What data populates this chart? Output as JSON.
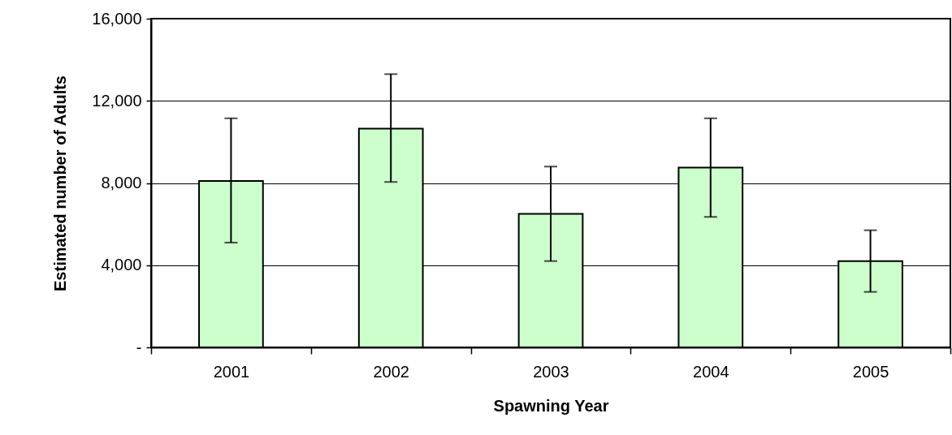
{
  "chart_data": {
    "type": "bar",
    "xlabel": "Spawning Year",
    "ylabel": "Estimated number of Adults",
    "categories": [
      "2001",
      "2002",
      "2003",
      "2004",
      "2005"
    ],
    "values": [
      8100,
      10650,
      6500,
      8750,
      4200
    ],
    "errors": [
      [
        5100,
        11150
      ],
      [
        8050,
        13300
      ],
      [
        4200,
        8800
      ],
      [
        6350,
        11150
      ],
      [
        2700,
        5700
      ]
    ],
    "color": "#ccffcc",
    "ylim": [
      0,
      16000
    ],
    "yticks": [
      {
        "value": 0,
        "label": "-"
      },
      {
        "value": 4000,
        "label": "4,000"
      },
      {
        "value": 8000,
        "label": "8,000"
      },
      {
        "value": 12000,
        "label": "12,000"
      },
      {
        "value": 16000,
        "label": "16,000"
      }
    ],
    "grid": "y"
  }
}
